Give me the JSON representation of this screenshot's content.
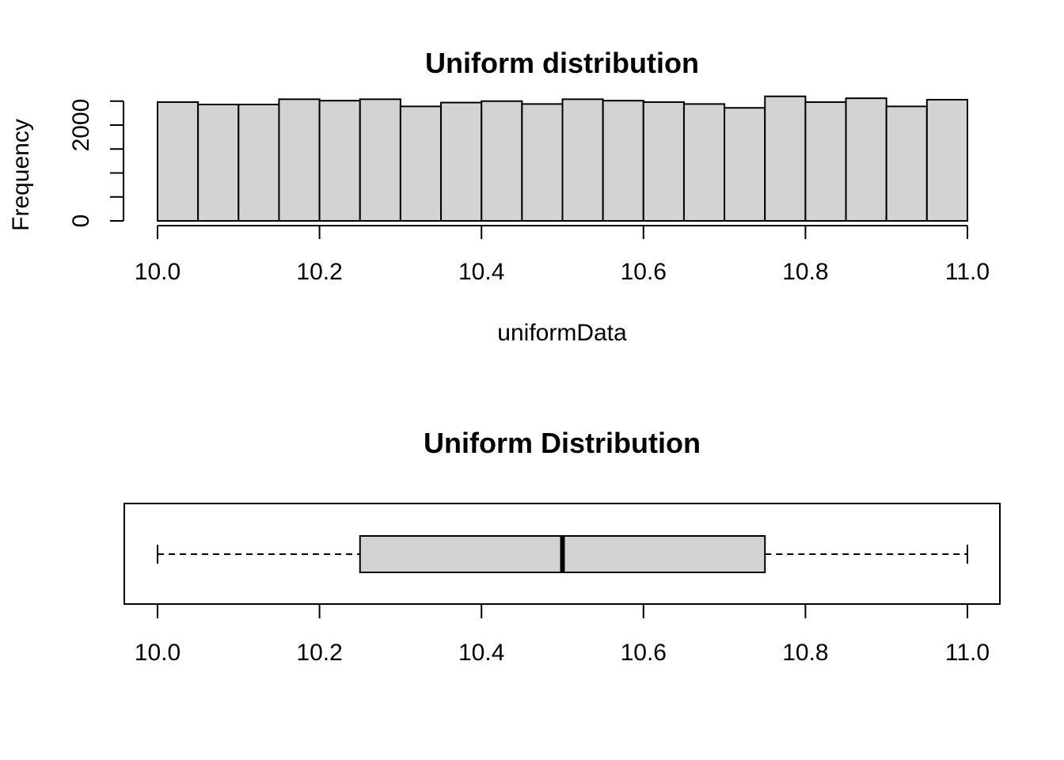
{
  "chart_data": [
    {
      "type": "histogram",
      "title": "Uniform distribution",
      "xlabel": "uniformData",
      "ylabel": "Frequency",
      "xlim": [
        10.0,
        11.0
      ],
      "ylim": [
        0,
        2500
      ],
      "x_ticks": [
        "10.0",
        "10.2",
        "10.4",
        "10.6",
        "10.8",
        "11.0"
      ],
      "y_ticks": [
        "0",
        "2000"
      ],
      "y_minor_ticks": [
        0,
        500,
        1000,
        1500,
        2000,
        2500
      ],
      "bins": [
        10.0,
        10.05,
        10.1,
        10.15,
        10.2,
        10.25,
        10.3,
        10.35,
        10.4,
        10.45,
        10.5,
        10.55,
        10.6,
        10.65,
        10.7,
        10.75,
        10.8,
        10.85,
        10.9,
        10.95,
        11.0
      ],
      "values": [
        2480,
        2430,
        2430,
        2540,
        2510,
        2540,
        2390,
        2470,
        2500,
        2440,
        2540,
        2510,
        2480,
        2440,
        2360,
        2600,
        2480,
        2560,
        2390,
        2530
      ],
      "bar_color": "#d3d3d3"
    },
    {
      "type": "boxplot",
      "title": "Uniform Distribution",
      "orientation": "horizontal",
      "xlim": [
        10.0,
        11.0
      ],
      "x_ticks": [
        "10.0",
        "10.2",
        "10.4",
        "10.6",
        "10.8",
        "11.0"
      ],
      "min": 10.0,
      "q1": 10.25,
      "median": 10.5,
      "q3": 10.75,
      "max": 11.0,
      "box_color": "#d3d3d3"
    }
  ]
}
